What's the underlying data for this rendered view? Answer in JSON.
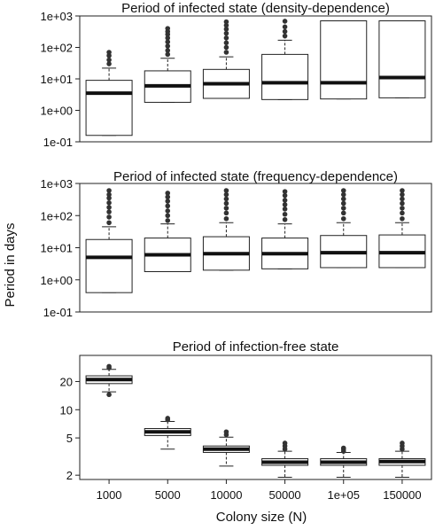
{
  "shared": {
    "ylabel": "Period in days",
    "xlabel": "Colony size (N)"
  },
  "chart_data": [
    {
      "type": "boxplot",
      "title": "Period of infected state (density-dependence)",
      "y_scale": "log",
      "y_ticks": [
        "1e-01",
        "1e+00",
        "1e+01",
        "1e+02",
        "1e+03"
      ],
      "ylim": [
        0.1,
        1000
      ],
      "categories": [
        "1000",
        "5000",
        "10000",
        "50000",
        "1e+05",
        "150000"
      ],
      "boxes": [
        {
          "q1": 0.16,
          "median": 3.5,
          "q3": 9,
          "whisker_low": 0.16,
          "whisker_high": 22,
          "outliers": [
            30,
            40,
            55,
            70
          ]
        },
        {
          "q1": 1.8,
          "median": 6,
          "q3": 18,
          "whisker_low": 1.8,
          "whisker_high": 45,
          "outliers": [
            60,
            80,
            110,
            150,
            200,
            260,
            320,
            400
          ]
        },
        {
          "q1": 2.4,
          "median": 7,
          "q3": 20,
          "whisker_low": 2.4,
          "whisker_high": 50,
          "outliers": [
            70,
            100,
            140,
            200,
            280,
            380,
            500,
            650
          ]
        },
        {
          "q1": 2.2,
          "median": 7.5,
          "q3": 60,
          "whisker_low": 2.2,
          "whisker_high": 170,
          "outliers": [
            230,
            320,
            450,
            680
          ]
        },
        {
          "q1": 2.3,
          "median": 7.5,
          "q3": 700,
          "whisker_low": 2.3,
          "whisker_high": 700,
          "outliers": []
        },
        {
          "q1": 2.5,
          "median": 11,
          "q3": 700,
          "whisker_low": 2.5,
          "whisker_high": 700,
          "outliers": []
        }
      ]
    },
    {
      "type": "boxplot",
      "title": "Period of infected state (frequency-dependence)",
      "y_scale": "log",
      "y_ticks": [
        "1e-01",
        "1e+00",
        "1e+01",
        "1e+02",
        "1e+03"
      ],
      "ylim": [
        0.1,
        1000
      ],
      "categories": [
        "1000",
        "5000",
        "10000",
        "50000",
        "1e+05",
        "150000"
      ],
      "boxes": [
        {
          "q1": 0.4,
          "median": 5,
          "q3": 18,
          "whisker_low": 0.4,
          "whisker_high": 45,
          "outliers": [
            60,
            90,
            130,
            180,
            250,
            350,
            450,
            600
          ]
        },
        {
          "q1": 1.8,
          "median": 6,
          "q3": 20,
          "whisker_low": 1.8,
          "whisker_high": 55,
          "outliers": [
            70,
            100,
            140,
            200,
            280,
            380,
            500
          ]
        },
        {
          "q1": 2,
          "median": 6.5,
          "q3": 22,
          "whisker_low": 2,
          "whisker_high": 60,
          "outliers": [
            80,
            120,
            170,
            240,
            330,
            450,
            600
          ]
        },
        {
          "q1": 2.2,
          "median": 6.5,
          "q3": 20,
          "whisker_low": 2.2,
          "whisker_high": 55,
          "outliers": [
            75,
            110,
            160,
            220,
            300,
            420,
            560
          ]
        },
        {
          "q1": 2.4,
          "median": 7,
          "q3": 24,
          "whisker_low": 2.4,
          "whisker_high": 60,
          "outliers": [
            80,
            120,
            170,
            240,
            330,
            450,
            600
          ]
        },
        {
          "q1": 2.4,
          "median": 7,
          "q3": 25,
          "whisker_low": 2.4,
          "whisker_high": 60,
          "outliers": [
            80,
            120,
            170,
            240,
            330,
            450,
            600
          ]
        }
      ]
    },
    {
      "type": "boxplot",
      "title": "Period of infection-free state",
      "y_scale": "log",
      "y_ticks": [
        "2",
        "5",
        "10",
        "20"
      ],
      "ylim": [
        1.8,
        38
      ],
      "categories": [
        "1000",
        "5000",
        "10000",
        "50000",
        "1e+05",
        "150000"
      ],
      "boxes": [
        {
          "q1": 19,
          "median": 21,
          "q3": 23,
          "whisker_low": 15.5,
          "whisker_high": 27,
          "outliers": [
            14.5,
            28,
            29
          ]
        },
        {
          "q1": 5.3,
          "median": 5.8,
          "q3": 6.3,
          "whisker_low": 3.8,
          "whisker_high": 7.5,
          "outliers": [
            7.8,
            8.1
          ]
        },
        {
          "q1": 3.5,
          "median": 3.8,
          "q3": 4.1,
          "whisker_low": 2.5,
          "whisker_high": 5.1,
          "outliers": [
            5.4,
            5.8
          ]
        },
        {
          "q1": 2.55,
          "median": 2.75,
          "q3": 3,
          "whisker_low": 1.9,
          "whisker_high": 3.6,
          "outliers": [
            3.8,
            4.1,
            4.4
          ]
        },
        {
          "q1": 2.55,
          "median": 2.75,
          "q3": 3,
          "whisker_low": 1.9,
          "whisker_high": 3.5,
          "outliers": [
            3.6,
            3.8,
            3.9
          ]
        },
        {
          "q1": 2.55,
          "median": 2.8,
          "q3": 3,
          "whisker_low": 1.9,
          "whisker_high": 3.6,
          "outliers": [
            3.8,
            4.1,
            4.4
          ]
        }
      ]
    }
  ]
}
